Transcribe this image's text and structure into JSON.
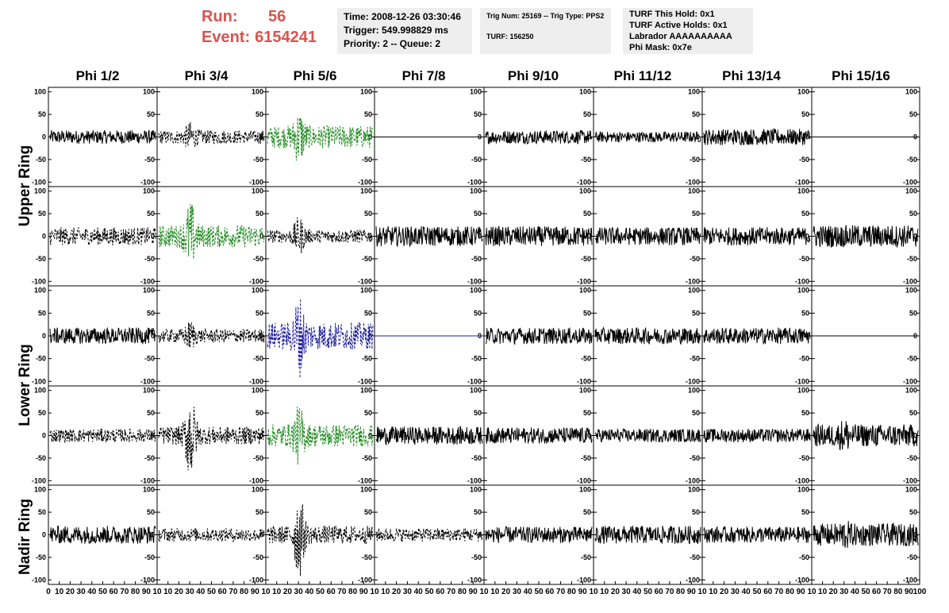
{
  "run": {
    "run_label": "Run:",
    "run_value": "56",
    "event_label": "Event:",
    "event_value": "6154241"
  },
  "info": {
    "time": "Time: 2008-12-26 03:30:46",
    "trigger": "Trigger: 549.998829 ms",
    "priority": "Priority: 2 -- Queue: 2",
    "trig_num": "Trig Num: 25169 -- Trig Type: PPS2",
    "turf": "TURF: 156250",
    "turf_hold": "TURF This Hold: 0x1",
    "turf_active": "TURF Active Holds: 0x1",
    "labrador": "Labrador AAAAAAAAAA",
    "phi_mask": "Phi Mask: 0x7e"
  },
  "colors": {
    "text_red": "#d9534f",
    "trace_black": "#000000",
    "trace_green": "#228b22",
    "trace_blue": "#1f1f9f",
    "box_bg": "#eeeeee"
  },
  "chart_data": {
    "type": "line",
    "columns": [
      "Phi 1/2",
      "Phi 3/4",
      "Phi 5/6",
      "Phi 7/8",
      "Phi 9/10",
      "Phi 11/12",
      "Phi 13/14",
      "Phi 15/16"
    ],
    "ring_labels": [
      "Upper Ring",
      "Lower Ring",
      "Nadir Ring"
    ],
    "rows": 5,
    "xlim": [
      0,
      100
    ],
    "ylim": [
      -110,
      110
    ],
    "yticks": [
      100,
      50,
      0,
      -50,
      -100
    ],
    "ytick_labels": [
      "100",
      "50",
      "0",
      "-50",
      "-100"
    ],
    "xtick_labels": [
      "0",
      "10",
      "20",
      "30",
      "40",
      "50",
      "60",
      "70",
      "80",
      "90",
      "10",
      "10",
      "20",
      "30",
      "40",
      "50",
      "60",
      "70",
      "80",
      "90",
      "10",
      "10",
      "20",
      "30",
      "40",
      "50",
      "60",
      "70",
      "80",
      "90",
      "10",
      "10",
      "20",
      "30",
      "40",
      "50",
      "60",
      "70",
      "80",
      "90",
      "10",
      "10",
      "20",
      "30",
      "40",
      "50",
      "60",
      "70",
      "80",
      "90",
      "10",
      "10",
      "20",
      "30",
      "40",
      "50",
      "60",
      "70",
      "80",
      "90",
      "10",
      "10",
      "20",
      "30",
      "40",
      "50",
      "60",
      "70",
      "80",
      "90",
      "10",
      "10",
      "20",
      "30",
      "40",
      "50",
      "60",
      "70",
      "80",
      "90",
      "100"
    ],
    "panels": [
      [
        {
          "style": "solid",
          "color": "black",
          "amp": 15,
          "burst": 0
        },
        {
          "style": "dashed",
          "color": "black",
          "amp": 15,
          "burst": 35
        },
        {
          "style": "dashed",
          "color": "green",
          "amp": 25,
          "burst": 65
        },
        {
          "style": "flat",
          "color": "black",
          "amp": 0,
          "burst": 0
        },
        {
          "style": "solid",
          "color": "black",
          "amp": 15,
          "burst": 0
        },
        {
          "style": "solid",
          "color": "black",
          "amp": 12,
          "burst": 0
        },
        {
          "style": "solid",
          "color": "black",
          "amp": 18,
          "burst": 0
        },
        {
          "style": "flat",
          "color": "black",
          "amp": 0,
          "burst": 0
        }
      ],
      [
        {
          "style": "dashed",
          "color": "black",
          "amp": 20,
          "burst": 0
        },
        {
          "style": "dashed",
          "color": "green",
          "amp": 25,
          "burst": 80
        },
        {
          "style": "dashed",
          "color": "black",
          "amp": 15,
          "burst": 45
        },
        {
          "style": "solid",
          "color": "black",
          "amp": 22,
          "burst": 0
        },
        {
          "style": "solid",
          "color": "black",
          "amp": 22,
          "burst": 0
        },
        {
          "style": "solid",
          "color": "black",
          "amp": 20,
          "burst": 0
        },
        {
          "style": "solid",
          "color": "black",
          "amp": 20,
          "burst": 0
        },
        {
          "style": "solid",
          "color": "black",
          "amp": 25,
          "burst": 0
        }
      ],
      [
        {
          "style": "solid",
          "color": "black",
          "amp": 18,
          "burst": 0
        },
        {
          "style": "dashed",
          "color": "black",
          "amp": 15,
          "burst": 35
        },
        {
          "style": "dashed",
          "color": "blue",
          "amp": 30,
          "burst": 95
        },
        {
          "style": "flat",
          "color": "blue",
          "amp": 0,
          "burst": 0
        },
        {
          "style": "solid",
          "color": "black",
          "amp": 18,
          "burst": 0
        },
        {
          "style": "solid",
          "color": "black",
          "amp": 18,
          "burst": 0
        },
        {
          "style": "solid",
          "color": "black",
          "amp": 18,
          "burst": 0
        },
        {
          "style": "flat",
          "color": "black",
          "amp": 0,
          "burst": 0
        }
      ],
      [
        {
          "style": "dashed",
          "color": "black",
          "amp": 15,
          "burst": 0
        },
        {
          "style": "dashed",
          "color": "black",
          "amp": 20,
          "burst": 100
        },
        {
          "style": "dashed",
          "color": "green",
          "amp": 25,
          "burst": 70
        },
        {
          "style": "solid",
          "color": "black",
          "amp": 20,
          "burst": 0
        },
        {
          "style": "solid",
          "color": "black",
          "amp": 18,
          "burst": 0
        },
        {
          "style": "solid",
          "color": "black",
          "amp": 15,
          "burst": 0
        },
        {
          "style": "solid",
          "color": "black",
          "amp": 15,
          "burst": 0
        },
        {
          "style": "solid",
          "color": "black",
          "amp": 25,
          "burst": 40
        }
      ],
      [
        {
          "style": "solid",
          "color": "black",
          "amp": 20,
          "burst": 0
        },
        {
          "style": "dashed",
          "color": "black",
          "amp": 15,
          "burst": 0
        },
        {
          "style": "dashed",
          "color": "black",
          "amp": 20,
          "burst": 100
        },
        {
          "style": "dashed",
          "color": "black",
          "amp": 15,
          "burst": 0
        },
        {
          "style": "solid",
          "color": "black",
          "amp": 18,
          "burst": 0
        },
        {
          "style": "solid",
          "color": "black",
          "amp": 20,
          "burst": 0
        },
        {
          "style": "solid",
          "color": "black",
          "amp": 18,
          "burst": 0
        },
        {
          "style": "solid",
          "color": "black",
          "amp": 25,
          "burst": 35
        }
      ]
    ]
  }
}
